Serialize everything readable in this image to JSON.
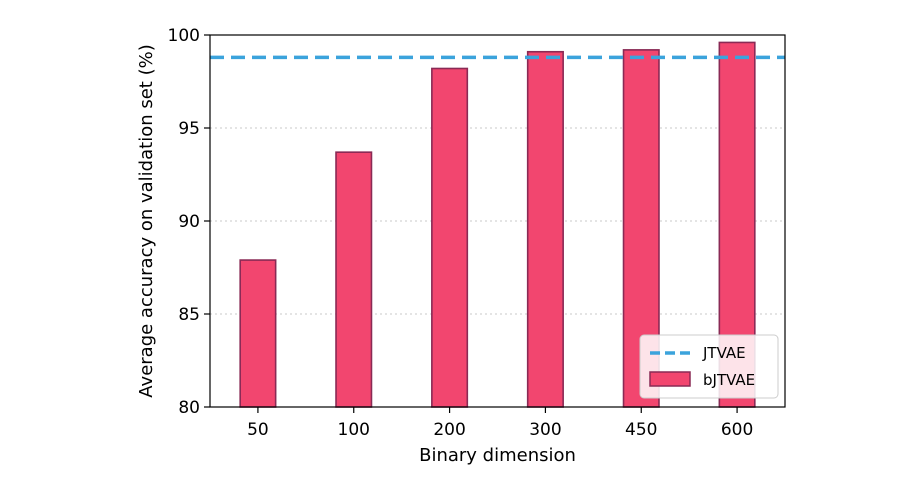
{
  "chart_data": {
    "type": "bar",
    "title": "",
    "xlabel": "Binary dimension",
    "ylabel": "Average accuracy on validation set (%)",
    "categories": [
      "50",
      "100",
      "200",
      "300",
      "450",
      "600"
    ],
    "series": [
      {
        "name": "bJTVAE",
        "values": [
          87.9,
          93.7,
          98.2,
          99.1,
          99.2,
          99.6
        ]
      }
    ],
    "reference_lines": [
      {
        "name": "JTVAE",
        "value": 98.8,
        "style": "dashed"
      }
    ],
    "ylim": [
      80,
      100
    ],
    "yticks": [
      80,
      85,
      90,
      95,
      100
    ],
    "grid": "horizontal dotted",
    "legend_position": "lower-right",
    "colors": {
      "bar_fill": "#f2466f",
      "bar_edge": "#8a2a55",
      "reference_line": "#3ba3dc"
    }
  }
}
